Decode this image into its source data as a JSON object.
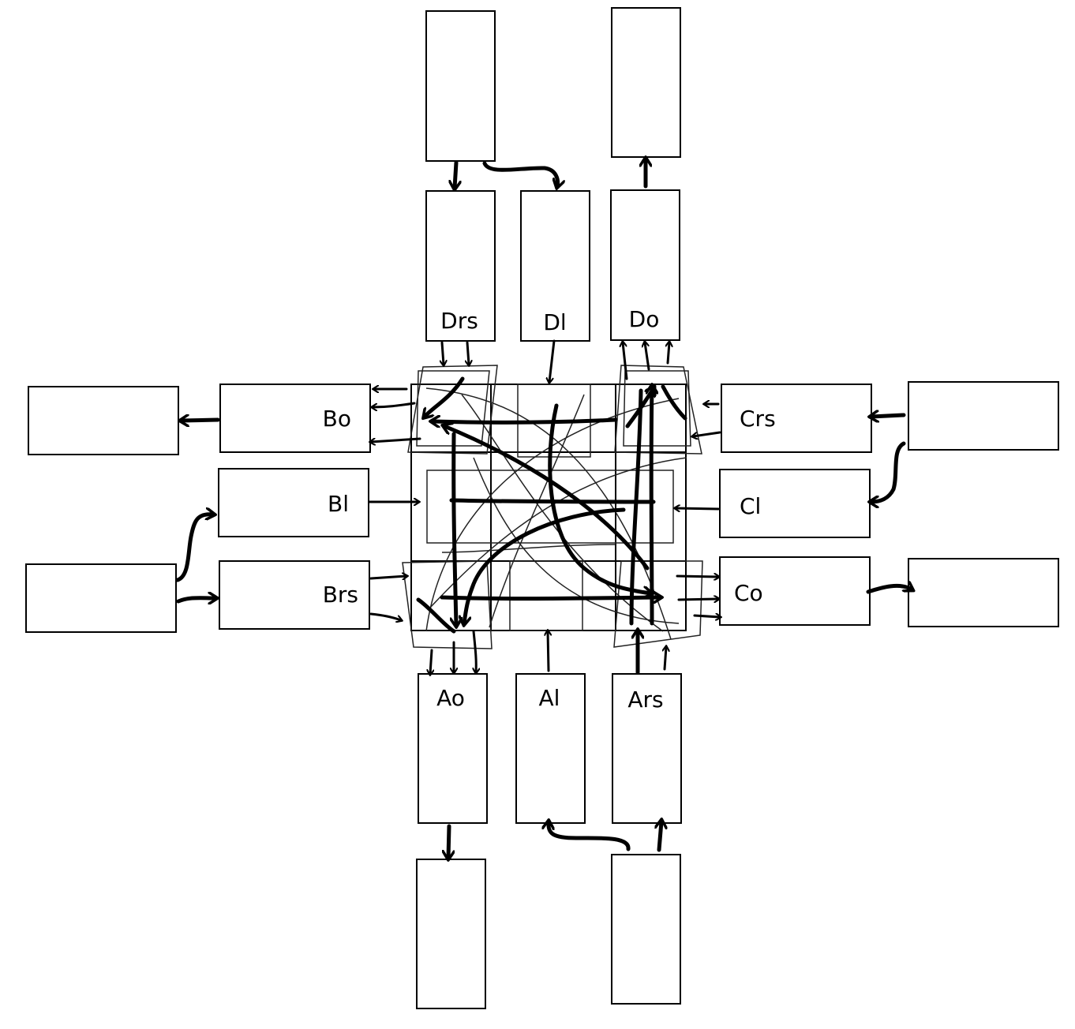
{
  "labels": {
    "drs": "Drs",
    "dl": "Dl",
    "do": "Do",
    "bo": "Bo",
    "bl": "Bl",
    "brs": "Brs",
    "crs": "Crs",
    "cl": "Cl",
    "co": "Co",
    "ao": "Ao",
    "al": "Al",
    "ars": "Ars"
  }
}
